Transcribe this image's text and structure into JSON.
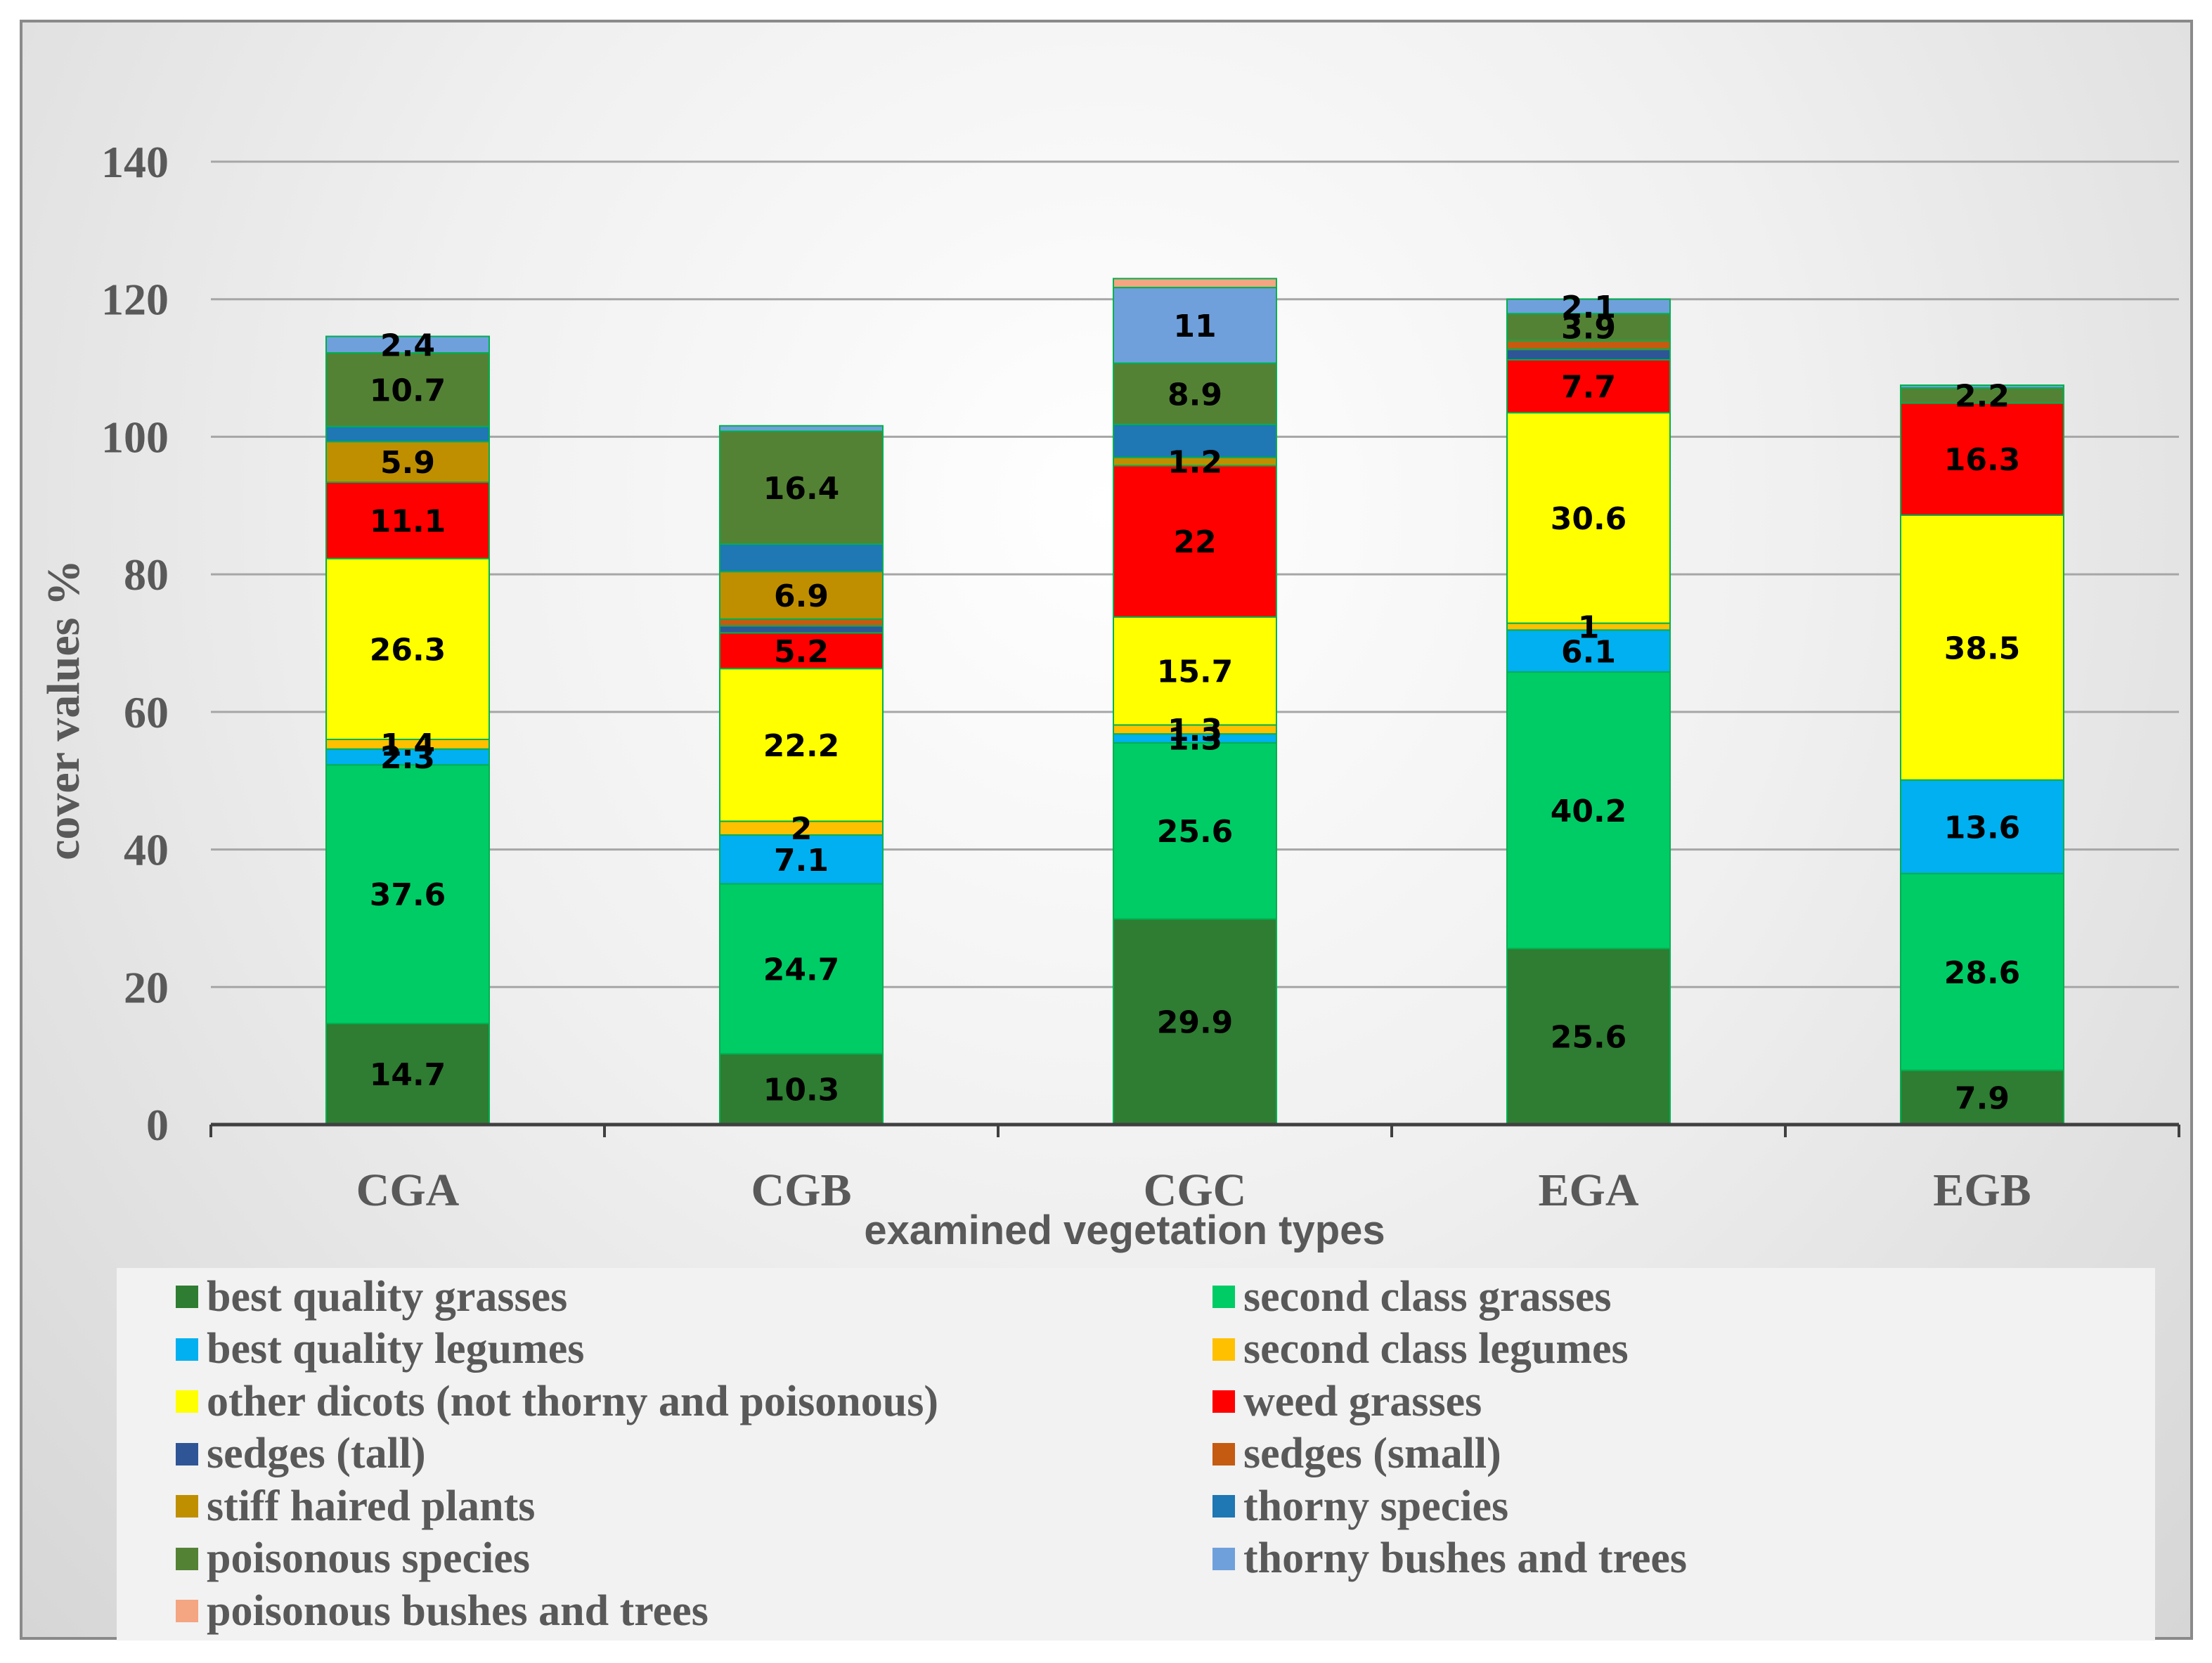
{
  "chart_data": {
    "type": "bar",
    "stacked": true,
    "categories": [
      "CGA",
      "CGB",
      "CGC",
      "EGA",
      "EGB"
    ],
    "xlabel": "examined vegetation types",
    "ylabel": "cover values %",
    "ylim": [
      0,
      140
    ],
    "yticks": [
      0,
      20,
      40,
      60,
      80,
      100,
      120,
      140
    ],
    "ytick_labels": [
      "0",
      "20",
      "40",
      "60",
      "80",
      "100",
      "120",
      "140"
    ],
    "grid": true,
    "legend_position": "bottom",
    "series": [
      {
        "name": "best quality grasses",
        "color": "#2e7d32",
        "values": [
          14.7,
          10.3,
          29.9,
          25.6,
          7.9
        ],
        "labels": [
          "14.7",
          "10.3",
          "29.9",
          "25.6",
          "7.9"
        ]
      },
      {
        "name": "second class grasses",
        "color": "#00cc66",
        "values": [
          37.6,
          24.7,
          25.6,
          40.2,
          28.6
        ],
        "labels": [
          "37.6",
          "24.7",
          "25.6",
          "40.2",
          "28.6"
        ]
      },
      {
        "name": "best quality legumes",
        "color": "#00b0f0",
        "values": [
          2.3,
          7.1,
          1.3,
          6.1,
          13.6
        ],
        "labels": [
          "2.3",
          "7.1",
          "1.3",
          "6.1",
          "13.6"
        ]
      },
      {
        "name": "second class legumes",
        "color": "#ffc000",
        "values": [
          1.4,
          2,
          1.3,
          1,
          0
        ],
        "labels": [
          "1.4",
          "2",
          "1.3",
          "1",
          ""
        ]
      },
      {
        "name": "other dicots (not thorny and poisonous)",
        "color": "#ffff00",
        "values": [
          26.3,
          22.2,
          15.7,
          30.6,
          38.5
        ],
        "labels": [
          "26.3",
          "22.2",
          "15.7",
          "30.6",
          "38.5"
        ]
      },
      {
        "name": "weed grasses",
        "color": "#ff0000",
        "values": [
          11.1,
          5.2,
          22,
          7.7,
          16.3
        ],
        "labels": [
          "11.1",
          "5.2",
          "22",
          "7.7",
          "16.3"
        ]
      },
      {
        "name": "sedges (tall)",
        "color": "#2f5597",
        "values": [
          0,
          1,
          0,
          1.5,
          0
        ],
        "labels": [
          "",
          "",
          "",
          "",
          ""
        ]
      },
      {
        "name": "sedges (small)",
        "color": "#c55a11",
        "values": [
          0,
          1,
          0,
          1.3,
          0
        ],
        "labels": [
          "",
          "",
          "",
          "",
          ""
        ]
      },
      {
        "name": "stiff haired plants",
        "color": "#bf8f00",
        "values": [
          5.9,
          6.9,
          1.2,
          0,
          0
        ],
        "labels": [
          "5.9",
          "6.9",
          "1.2",
          "",
          ""
        ]
      },
      {
        "name": "thorny species",
        "color": "#1f77b4",
        "values": [
          2.2,
          4,
          4.8,
          0,
          0
        ],
        "labels": [
          "",
          "",
          "",
          "",
          ""
        ]
      },
      {
        "name": "poisonous species",
        "color": "#548235",
        "values": [
          10.7,
          16.4,
          8.9,
          3.9,
          2.2
        ],
        "labels": [
          "10.7",
          "16.4",
          "8.9",
          "3.9",
          "2.2"
        ]
      },
      {
        "name": "thorny bushes and trees",
        "color": "#6fa0dc",
        "values": [
          2.4,
          0.8,
          11,
          2.1,
          0.4
        ],
        "labels": [
          "2.4",
          "",
          "11",
          "2.1",
          ""
        ]
      },
      {
        "name": "poisonous bushes and trees",
        "color": "#f4a582",
        "values": [
          0,
          0,
          1.3,
          0,
          0
        ],
        "labels": [
          "",
          "",
          "",
          "",
          ""
        ]
      }
    ]
  }
}
